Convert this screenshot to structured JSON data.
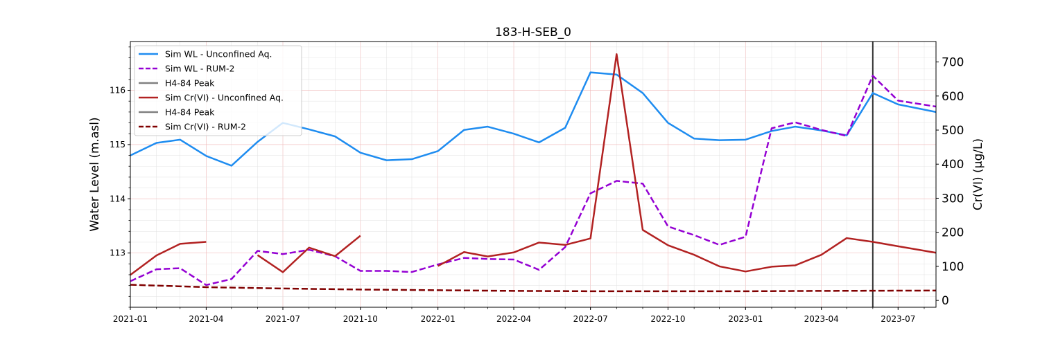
{
  "chart_data": {
    "type": "line",
    "title": "183-H-SEB_0",
    "xlabel": "",
    "ylabel_left": "Water Level (m.asl)",
    "ylabel_right": "Cr(VI) (µg/L)",
    "xlim": [
      "2021-01-01",
      "2023-08-15"
    ],
    "ylim_left": [
      112.0,
      116.9
    ],
    "ylim_right": [
      -20,
      760
    ],
    "x_ticks": [
      "2021-01",
      "2021-04",
      "2021-07",
      "2021-10",
      "2022-01",
      "2022-04",
      "2022-07",
      "2022-10",
      "2023-01",
      "2023-04",
      "2023-07"
    ],
    "y_ticks_left": [
      113,
      114,
      115,
      116
    ],
    "y_ticks_right": [
      0,
      100,
      200,
      300,
      400,
      500,
      600,
      700
    ],
    "grid": true,
    "legend_position": "upper left",
    "vertical_line": {
      "x": "2023-06-01",
      "color": "#333333"
    },
    "series": [
      {
        "name": "Sim WL - Unconfined Aq.",
        "axis": "left",
        "color": "#1e8cf0",
        "dash": "solid",
        "points": [
          [
            "2021-01-01",
            114.8
          ],
          [
            "2021-02-01",
            115.03
          ],
          [
            "2021-03-01",
            115.09
          ],
          [
            "2021-04-01",
            114.79
          ],
          [
            "2021-05-01",
            114.61
          ],
          [
            "2021-06-01",
            115.05
          ],
          [
            "2021-07-01",
            115.4
          ],
          [
            "2021-08-01",
            115.28
          ],
          [
            "2021-09-01",
            115.15
          ],
          [
            "2021-10-01",
            114.85
          ],
          [
            "2021-11-01",
            114.71
          ],
          [
            "2021-12-01",
            114.73
          ],
          [
            "2022-01-01",
            114.88
          ],
          [
            "2022-02-01",
            115.27
          ],
          [
            "2022-03-01",
            115.33
          ],
          [
            "2022-04-01",
            115.2
          ],
          [
            "2022-05-01",
            115.04
          ],
          [
            "2022-06-01",
            115.31
          ],
          [
            "2022-07-01",
            116.33
          ],
          [
            "2022-08-01",
            116.29
          ],
          [
            "2022-09-01",
            115.95
          ],
          [
            "2022-10-01",
            115.4
          ],
          [
            "2022-11-01",
            115.11
          ],
          [
            "2022-12-01",
            115.08
          ],
          [
            "2023-01-01",
            115.09
          ],
          [
            "2023-02-01",
            115.25
          ],
          [
            "2023-03-01",
            115.33
          ],
          [
            "2023-04-01",
            115.26
          ],
          [
            "2023-05-01",
            115.17
          ],
          [
            "2023-06-01",
            115.95
          ],
          [
            "2023-07-01",
            115.74
          ],
          [
            "2023-08-15",
            115.6
          ]
        ]
      },
      {
        "name": "Sim WL - RUM-2",
        "axis": "left",
        "color": "#9400d3",
        "dash": "dashed",
        "points": [
          [
            "2021-01-01",
            112.48
          ],
          [
            "2021-02-01",
            112.7
          ],
          [
            "2021-03-01",
            112.72
          ],
          [
            "2021-04-01",
            112.41
          ],
          [
            "2021-05-01",
            112.52
          ],
          [
            "2021-06-01",
            113.04
          ],
          [
            "2021-07-01",
            112.98
          ],
          [
            "2021-08-01",
            113.06
          ],
          [
            "2021-09-01",
            112.94
          ],
          [
            "2021-10-01",
            112.67
          ],
          [
            "2021-11-01",
            112.67
          ],
          [
            "2021-12-01",
            112.65
          ],
          [
            "2022-01-01",
            112.79
          ],
          [
            "2022-02-01",
            112.91
          ],
          [
            "2022-03-01",
            112.89
          ],
          [
            "2022-04-01",
            112.88
          ],
          [
            "2022-05-01",
            112.69
          ],
          [
            "2022-06-01",
            113.11
          ],
          [
            "2022-07-01",
            114.1
          ],
          [
            "2022-08-01",
            114.33
          ],
          [
            "2022-09-01",
            114.28
          ],
          [
            "2022-10-01",
            113.49
          ],
          [
            "2022-11-01",
            113.33
          ],
          [
            "2022-12-01",
            113.15
          ],
          [
            "2023-01-01",
            113.3
          ],
          [
            "2023-02-01",
            115.3
          ],
          [
            "2023-03-01",
            115.41
          ],
          [
            "2023-04-01",
            115.27
          ],
          [
            "2023-05-01",
            115.16
          ],
          [
            "2023-06-01",
            116.27
          ],
          [
            "2023-07-01",
            115.81
          ],
          [
            "2023-08-15",
            115.7
          ]
        ]
      },
      {
        "name": "H4-84 Peak",
        "axis": "left",
        "color": "#808080",
        "dash": "solid",
        "points": []
      },
      {
        "name": "Sim Cr(VI) - Unconfined Aq.",
        "axis": "right",
        "color": "#b22222",
        "dash": "solid",
        "segments": [
          [
            [
              "2021-01-01",
              75
            ],
            [
              "2021-02-01",
              132
            ],
            [
              "2021-03-01",
              166
            ],
            [
              "2021-04-01",
              172
            ]
          ],
          [
            [
              "2021-06-01",
              133
            ],
            [
              "2021-07-01",
              83
            ],
            [
              "2021-08-01",
              155
            ],
            [
              "2021-09-01",
              130
            ],
            [
              "2021-10-01",
              190
            ]
          ],
          [
            [
              "2022-01-01",
              101
            ],
            [
              "2022-02-01",
              142
            ],
            [
              "2022-03-01",
              129
            ],
            [
              "2022-04-01",
              141
            ],
            [
              "2022-05-01",
              170
            ],
            [
              "2022-06-01",
              163
            ],
            [
              "2022-07-01",
              182
            ],
            [
              "2022-08-01",
              723
            ],
            [
              "2022-09-01",
              207
            ],
            [
              "2022-10-01",
              162
            ],
            [
              "2022-11-01",
              134
            ],
            [
              "2022-12-01",
              100
            ],
            [
              "2023-01-01",
              85
            ],
            [
              "2023-02-01",
              99
            ],
            [
              "2023-03-01",
              103
            ],
            [
              "2023-04-01",
              134
            ],
            [
              "2023-05-01",
              183
            ],
            [
              "2023-06-01",
              172
            ],
            [
              "2023-07-01",
              159
            ],
            [
              "2023-08-15",
              140
            ]
          ]
        ]
      },
      {
        "name": "H4-84 Peak",
        "axis": "right",
        "color": "#808080",
        "dash": "solid",
        "points": []
      },
      {
        "name": "Sim Cr(VI) - RUM-2",
        "axis": "right",
        "color": "#800000",
        "dash": "dashed",
        "points": [
          [
            "2021-01-01",
            46
          ],
          [
            "2021-04-01",
            39
          ],
          [
            "2021-07-01",
            35
          ],
          [
            "2021-10-01",
            32
          ],
          [
            "2022-01-01",
            30
          ],
          [
            "2022-04-01",
            28
          ],
          [
            "2022-07-01",
            27
          ],
          [
            "2022-10-01",
            27
          ],
          [
            "2023-01-01",
            27
          ],
          [
            "2023-04-01",
            28
          ],
          [
            "2023-08-15",
            29
          ]
        ]
      }
    ]
  }
}
